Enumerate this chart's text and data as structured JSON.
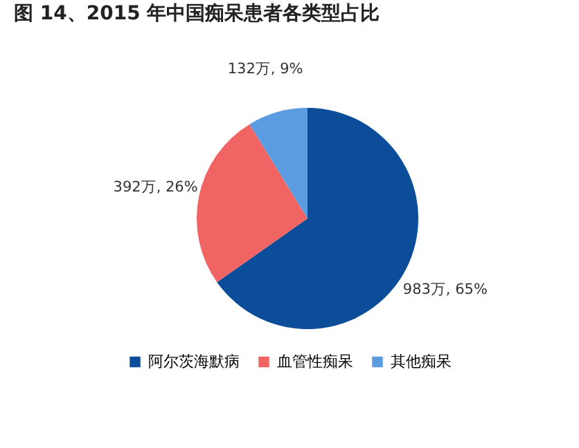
{
  "chart_data": {
    "type": "pie",
    "title": "图 14、2015 年中国痴呆患者各类型占比",
    "categories": [
      "阿尔茨海默病",
      "血管性痴呆",
      "其他痴呆"
    ],
    "values": [
      983,
      392,
      132
    ],
    "colors": [
      "#0b4d98",
      "#f06464",
      "#5b9be0"
    ],
    "value_labels": [
      "983万, 65%",
      "392万, 26%",
      "132万, 9%"
    ],
    "legend": "bottom"
  }
}
